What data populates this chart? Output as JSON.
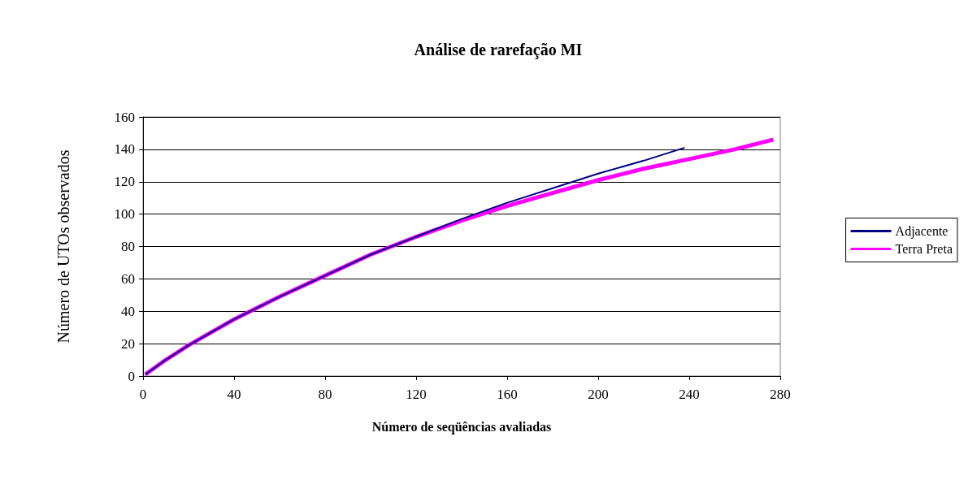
{
  "chart_data": {
    "type": "line",
    "title": "Análise de rarefação MI",
    "xlabel": "Número de seqüências avaliadas",
    "ylabel": "Número de UTOs observados",
    "xlim": [
      0,
      280
    ],
    "xticks": [
      0,
      40,
      80,
      120,
      160,
      200,
      240,
      280
    ],
    "ylim": [
      0,
      160
    ],
    "yticks": [
      0,
      20,
      40,
      60,
      80,
      100,
      120,
      140,
      160
    ],
    "grid": "y",
    "legend": "right",
    "marker": "none",
    "line_style": "solid",
    "series": [
      {
        "name": "Adjacente",
        "color": "#000080",
        "x": [
          1,
          10,
          20,
          30,
          40,
          60,
          80,
          100,
          120,
          140,
          160,
          180,
          200,
          220,
          238
        ],
        "values": [
          1,
          10,
          19,
          27,
          35,
          49,
          62,
          75,
          86,
          97,
          107,
          116,
          125,
          133,
          141
        ]
      },
      {
        "name": "Terra Preta",
        "color": "#ff00ff",
        "x": [
          1,
          10,
          20,
          30,
          40,
          60,
          80,
          100,
          120,
          140,
          160,
          180,
          200,
          220,
          240,
          260,
          277
        ],
        "values": [
          1,
          10,
          19,
          27,
          35,
          49,
          62,
          75,
          86,
          96,
          105,
          113,
          121,
          128,
          134,
          140,
          146
        ]
      }
    ]
  }
}
